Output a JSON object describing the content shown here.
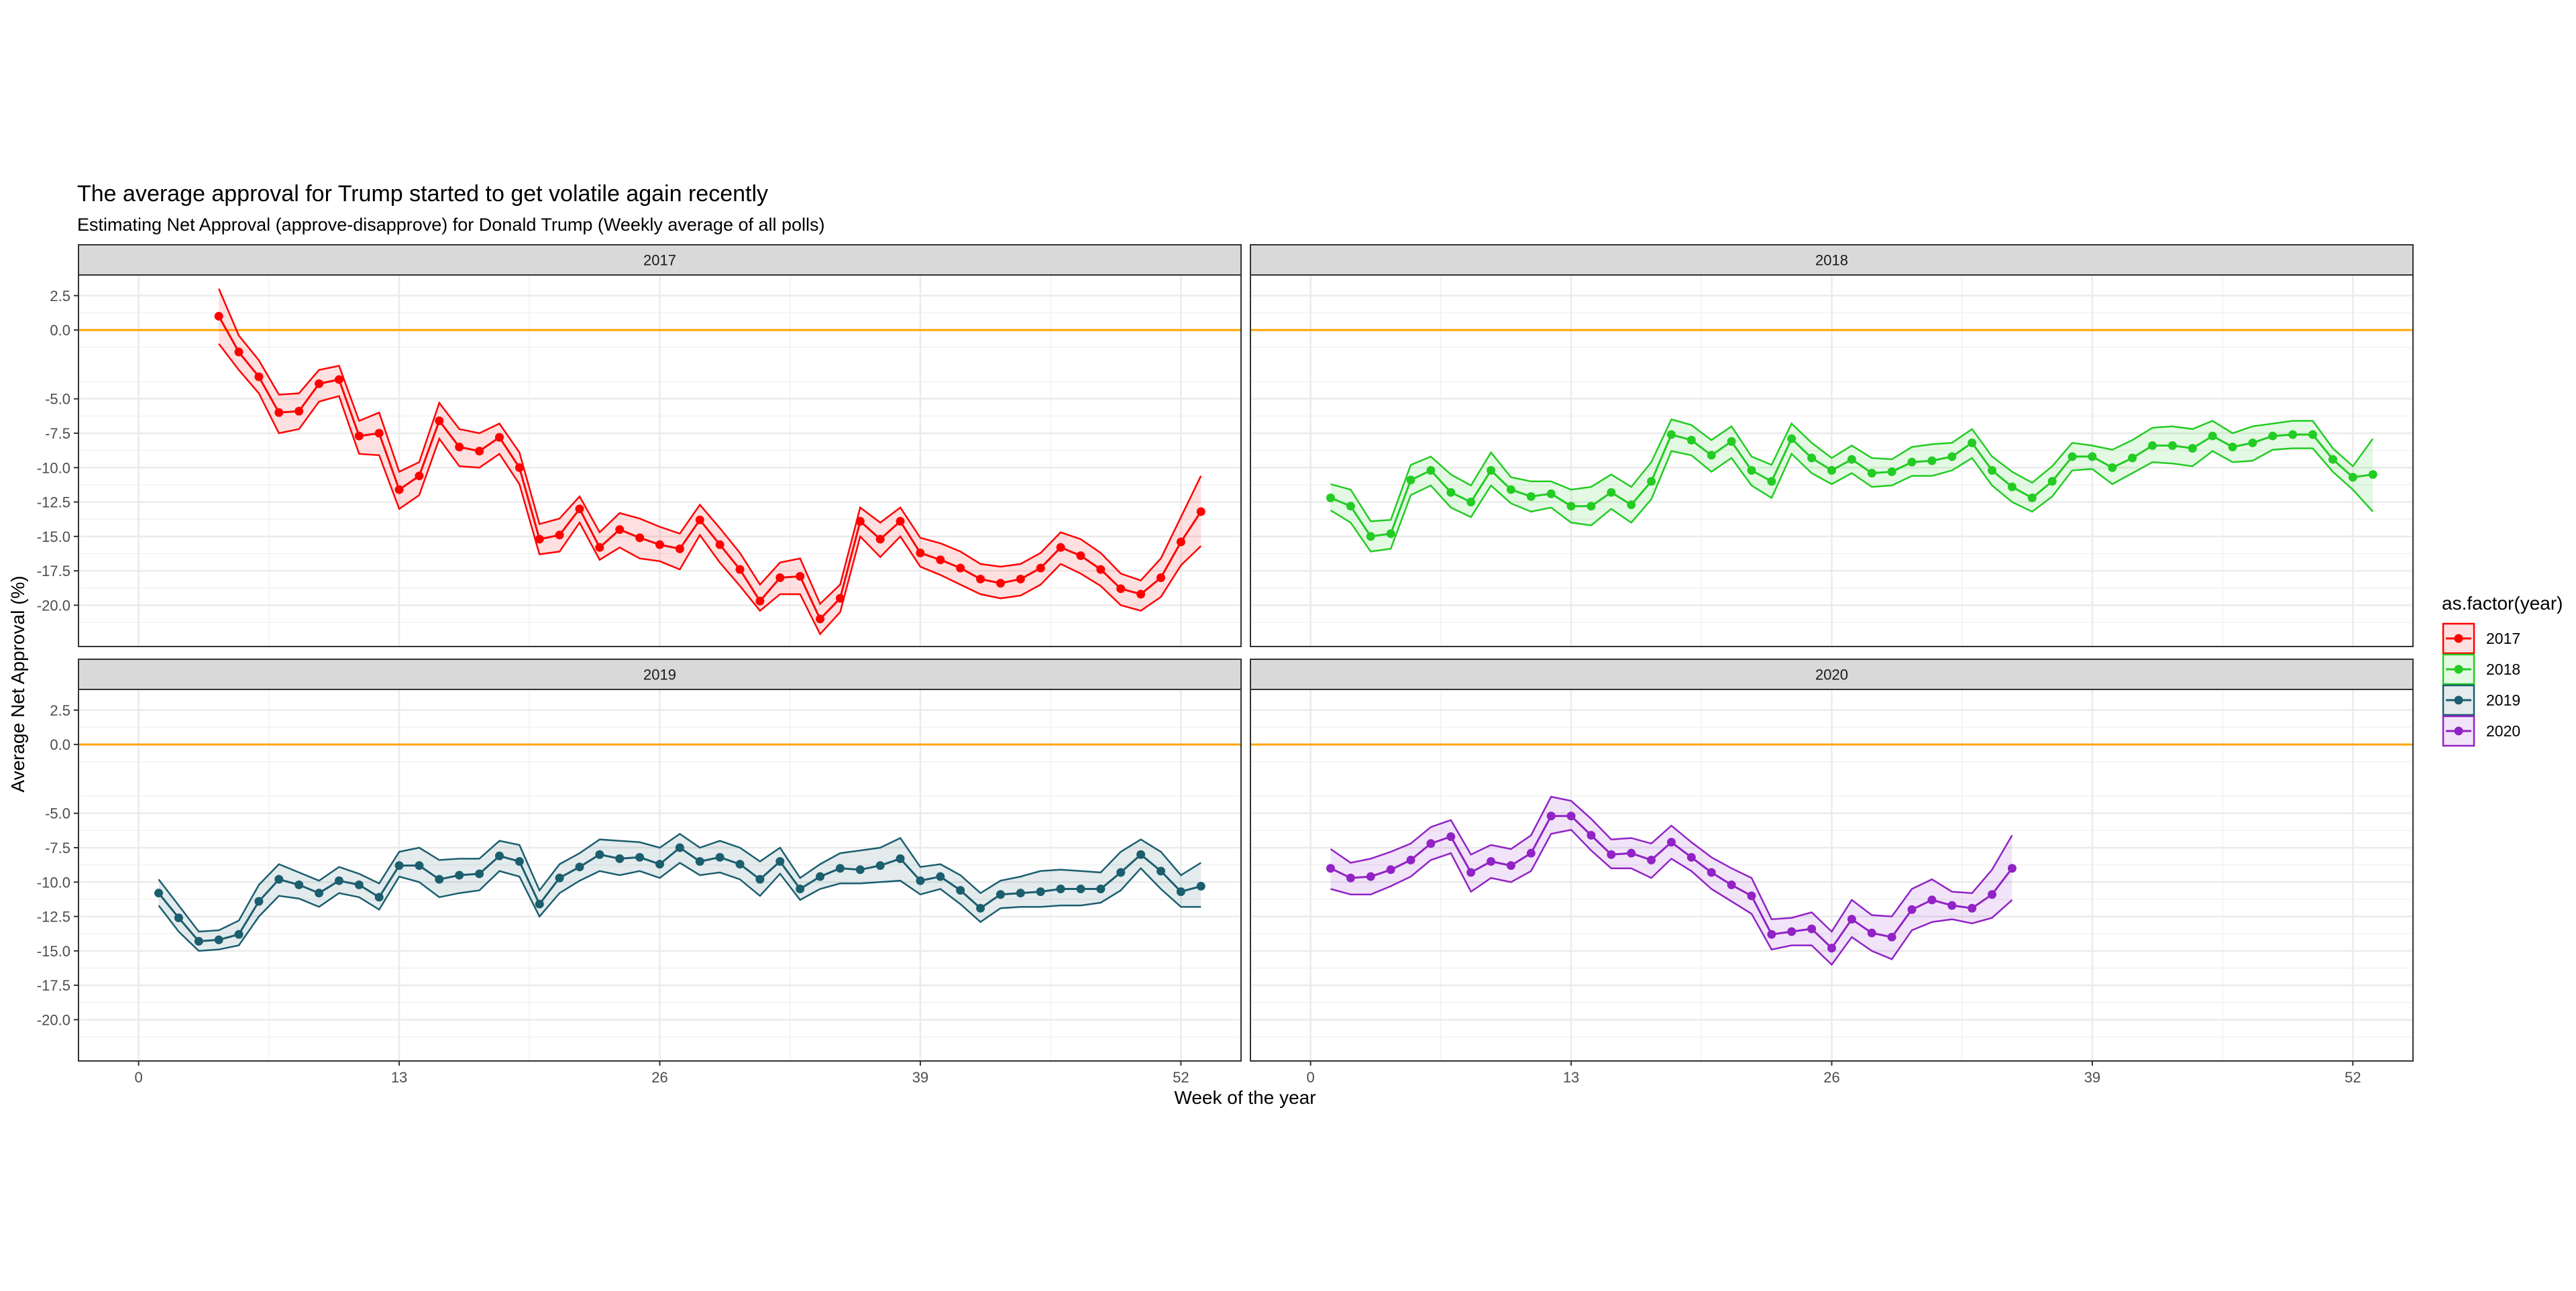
{
  "chart_data": {
    "type": "line",
    "title": "The average approval for Trump started to get volatile again recently",
    "subtitle": "Estimating Net Approval (approve-disapprove) for Donald Trump (Weekly average of all polls)",
    "xlabel": "Week of the year",
    "ylabel": "Average Net Approval (%)",
    "xlim": [
      -3,
      55
    ],
    "ylim": [
      -23,
      4
    ],
    "x_ticks": [
      0,
      13,
      26,
      39,
      52
    ],
    "y_ticks": [
      2.5,
      0.0,
      -5.0,
      -7.5,
      -10.0,
      -12.5,
      -15.0,
      -17.5,
      -20.0
    ],
    "y_tick_labels": [
      "2.5",
      "0.0",
      "-5.0",
      "-7.5",
      "-10.0",
      "-12.5",
      "-15.0",
      "-17.5",
      "-20.0"
    ],
    "reference_line": {
      "y": 0,
      "color": "#FFA500"
    },
    "grid": true,
    "legend": {
      "title": "as.factor(year)",
      "placement": "right"
    },
    "panels": [
      {
        "name": "2017",
        "color": "#FF0000",
        "x": [
          4,
          5,
          6,
          7,
          8,
          9,
          10,
          11,
          12,
          13,
          14,
          15,
          16,
          17,
          18,
          19,
          20,
          21,
          22,
          23,
          24,
          25,
          26,
          27,
          28,
          29,
          30,
          31,
          32,
          33,
          34,
          35,
          36,
          37,
          38,
          39,
          40,
          41,
          42,
          43,
          44,
          45,
          46,
          47,
          48,
          49,
          50,
          51,
          52,
          53
        ],
        "mean": [
          1.0,
          -1.6,
          -3.4,
          -6.0,
          -5.9,
          -3.9,
          -3.6,
          -7.7,
          -7.5,
          -11.6,
          -10.6,
          -6.6,
          -8.5,
          -8.8,
          -7.8,
          -10.0,
          -15.2,
          -14.9,
          -13.0,
          -15.8,
          -14.5,
          -15.1,
          -15.6,
          -15.9,
          -13.8,
          -15.6,
          -17.4,
          -19.7,
          -18.0,
          -17.9,
          -21.0,
          -19.5,
          -13.9,
          -15.2,
          -13.9,
          -16.2,
          -16.7,
          -17.3,
          -18.1,
          -18.4,
          -18.1,
          -17.3,
          -15.8,
          -16.4,
          -17.4,
          -18.8,
          -19.2,
          -18.0,
          -15.4,
          -13.2
        ],
        "upper": [
          3.0,
          -0.4,
          -2.2,
          -4.7,
          -4.6,
          -2.9,
          -2.6,
          -6.6,
          -6.0,
          -10.3,
          -9.6,
          -5.3,
          -7.2,
          -7.5,
          -6.8,
          -8.9,
          -14.1,
          -13.7,
          -12.1,
          -14.7,
          -13.3,
          -13.7,
          -14.3,
          -14.8,
          -12.7,
          -14.4,
          -16.2,
          -18.5,
          -16.9,
          -16.6,
          -19.9,
          -18.5,
          -12.9,
          -14.0,
          -12.9,
          -15.1,
          -15.5,
          -16.1,
          -17.0,
          -17.2,
          -17.0,
          -16.2,
          -14.7,
          -15.2,
          -16.2,
          -17.7,
          -18.2,
          -16.6,
          -13.6,
          -10.6
        ],
        "lower": [
          -1.0,
          -2.9,
          -4.6,
          -7.5,
          -7.2,
          -5.2,
          -4.8,
          -9.0,
          -9.1,
          -13.0,
          -12.0,
          -7.9,
          -9.9,
          -10.0,
          -9.0,
          -11.2,
          -16.3,
          -16.1,
          -14.0,
          -16.7,
          -15.8,
          -16.6,
          -16.8,
          -17.4,
          -14.9,
          -16.9,
          -18.6,
          -20.4,
          -19.2,
          -19.2,
          -22.1,
          -20.5,
          -15.0,
          -16.5,
          -15.0,
          -17.2,
          -17.8,
          -18.5,
          -19.2,
          -19.5,
          -19.3,
          -18.5,
          -17.0,
          -17.7,
          -18.6,
          -20.0,
          -20.4,
          -19.4,
          -17.1,
          -15.7
        ]
      },
      {
        "name": "2018",
        "color": "#22CC22",
        "x": [
          1,
          2,
          3,
          4,
          5,
          6,
          7,
          8,
          9,
          10,
          11,
          12,
          13,
          14,
          15,
          16,
          17,
          18,
          19,
          20,
          21,
          22,
          23,
          24,
          25,
          26,
          27,
          28,
          29,
          30,
          31,
          32,
          33,
          34,
          35,
          36,
          37,
          38,
          39,
          40,
          41,
          42,
          43,
          44,
          45,
          46,
          47,
          48,
          49,
          50,
          51,
          52,
          53
        ],
        "mean": [
          -12.2,
          -12.8,
          -15.0,
          -14.8,
          -10.9,
          -10.2,
          -11.8,
          -12.5,
          -10.2,
          -11.6,
          -12.1,
          -11.9,
          -12.8,
          -12.8,
          -11.8,
          -12.7,
          -11.0,
          -7.6,
          -8.0,
          -9.1,
          -8.1,
          -10.2,
          -11.0,
          -7.9,
          -9.3,
          -10.2,
          -9.4,
          -10.4,
          -10.3,
          -9.6,
          -9.5,
          -9.2,
          -8.2,
          -10.2,
          -11.4,
          -12.2,
          -11.0,
          -9.2,
          -9.2,
          -10.0,
          -9.3,
          -8.4,
          -8.4,
          -8.6,
          -7.7,
          -8.5,
          -8.2,
          -7.7,
          -7.6,
          -7.6,
          -9.4,
          -10.7,
          -10.5
        ],
        "upper": [
          -11.2,
          -11.6,
          -13.9,
          -13.8,
          -9.8,
          -9.2,
          -10.5,
          -11.3,
          -8.9,
          -10.7,
          -11.0,
          -11.0,
          -11.6,
          -11.4,
          -10.5,
          -11.4,
          -9.6,
          -6.5,
          -6.9,
          -8.0,
          -7.0,
          -9.2,
          -9.8,
          -6.8,
          -8.2,
          -9.3,
          -8.4,
          -9.3,
          -9.4,
          -8.5,
          -8.3,
          -8.2,
          -7.2,
          -9.2,
          -10.3,
          -11.1,
          -9.9,
          -8.2,
          -8.4,
          -8.7,
          -8.0,
          -7.1,
          -7.0,
          -7.2,
          -6.6,
          -7.5,
          -7.0,
          -6.8,
          -6.6,
          -6.6,
          -8.6,
          -9.9,
          -7.9
        ],
        "lower": [
          -13.1,
          -14.0,
          -16.1,
          -15.9,
          -12.0,
          -11.3,
          -12.9,
          -13.6,
          -11.3,
          -12.6,
          -13.2,
          -12.9,
          -14.0,
          -14.2,
          -13.0,
          -14.0,
          -12.3,
          -8.8,
          -9.1,
          -10.3,
          -9.3,
          -11.3,
          -12.2,
          -9.0,
          -10.4,
          -11.2,
          -10.4,
          -11.4,
          -11.3,
          -10.6,
          -10.6,
          -10.2,
          -9.3,
          -11.3,
          -12.5,
          -13.2,
          -12.1,
          -10.2,
          -10.1,
          -11.2,
          -10.4,
          -9.6,
          -9.7,
          -9.9,
          -8.8,
          -9.6,
          -9.5,
          -8.7,
          -8.6,
          -8.6,
          -10.3,
          -11.6,
          -13.2
        ]
      },
      {
        "name": "2019",
        "color": "#1B5E6E",
        "x": [
          1,
          2,
          3,
          4,
          5,
          6,
          7,
          8,
          9,
          10,
          11,
          12,
          13,
          14,
          15,
          16,
          17,
          18,
          19,
          20,
          21,
          22,
          23,
          24,
          25,
          26,
          27,
          28,
          29,
          30,
          31,
          32,
          33,
          34,
          35,
          36,
          37,
          38,
          39,
          40,
          41,
          42,
          43,
          44,
          45,
          46,
          47,
          48,
          49,
          50,
          51,
          52,
          53
        ],
        "mean": [
          -10.8,
          -12.6,
          -14.3,
          -14.2,
          -13.8,
          -11.4,
          -9.8,
          -10.2,
          -10.8,
          -9.9,
          -10.2,
          -11.1,
          -8.8,
          -8.8,
          -9.8,
          -9.5,
          -9.4,
          -8.1,
          -8.5,
          -11.6,
          -9.7,
          -8.9,
          -8.0,
          -8.3,
          -8.2,
          -8.7,
          -7.5,
          -8.5,
          -8.2,
          -8.7,
          -9.8,
          -8.5,
          -10.5,
          -9.6,
          -9.0,
          -9.1,
          -8.8,
          -8.3,
          -9.9,
          -9.6,
          -10.6,
          -11.9,
          -10.9,
          -10.8,
          -10.7,
          -10.5,
          -10.5,
          -10.5,
          -9.3,
          -8.0,
          -9.2,
          -10.7,
          -10.3
        ],
        "upper": [
          -9.8,
          -11.7,
          -13.6,
          -13.5,
          -12.8,
          -10.2,
          -8.7,
          -9.3,
          -9.9,
          -8.9,
          -9.4,
          -10.1,
          -7.8,
          -7.5,
          -8.4,
          -8.3,
          -8.3,
          -7.0,
          -7.3,
          -10.6,
          -8.7,
          -7.9,
          -6.9,
          -7.0,
          -7.1,
          -7.5,
          -6.5,
          -7.5,
          -7.0,
          -7.5,
          -8.5,
          -7.5,
          -9.7,
          -8.7,
          -7.9,
          -7.7,
          -7.5,
          -6.8,
          -8.9,
          -8.7,
          -9.5,
          -10.8,
          -9.9,
          -9.6,
          -9.2,
          -9.1,
          -9.2,
          -9.3,
          -7.8,
          -6.9,
          -7.8,
          -9.5,
          -8.6
        ],
        "lower": [
          -11.7,
          -13.6,
          -15.0,
          -14.9,
          -14.6,
          -12.5,
          -11.0,
          -11.2,
          -11.8,
          -10.8,
          -11.1,
          -12.0,
          -9.6,
          -10.0,
          -11.1,
          -10.8,
          -10.6,
          -9.2,
          -9.6,
          -12.5,
          -10.8,
          -9.9,
          -9.2,
          -9.5,
          -9.2,
          -9.7,
          -8.6,
          -9.5,
          -9.3,
          -9.8,
          -11.0,
          -9.4,
          -11.3,
          -10.5,
          -10.1,
          -10.1,
          -10.0,
          -9.9,
          -10.9,
          -10.5,
          -11.6,
          -12.9,
          -11.9,
          -11.8,
          -11.8,
          -11.7,
          -11.7,
          -11.5,
          -10.6,
          -9.0,
          -10.5,
          -11.8,
          -11.8
        ]
      },
      {
        "name": "2020",
        "color": "#9122C6",
        "x": [
          1,
          2,
          3,
          4,
          5,
          6,
          7,
          8,
          9,
          10,
          11,
          12,
          13,
          14,
          15,
          16,
          17,
          18,
          19,
          20,
          21,
          22,
          23,
          24,
          25,
          26,
          27,
          28,
          29,
          30,
          31,
          32,
          33,
          34,
          35
        ],
        "mean": [
          -9.0,
          -9.7,
          -9.6,
          -9.1,
          -8.4,
          -7.2,
          -6.7,
          -9.3,
          -8.5,
          -8.8,
          -7.9,
          -5.2,
          -5.2,
          -6.6,
          -8.0,
          -7.9,
          -8.4,
          -7.1,
          -8.2,
          -9.3,
          -10.2,
          -11.0,
          -13.8,
          -13.6,
          -13.4,
          -14.8,
          -12.7,
          -13.7,
          -14.0,
          -12.0,
          -11.3,
          -11.7,
          -11.9,
          -10.9,
          -9.0
        ],
        "upper": [
          -7.6,
          -8.6,
          -8.3,
          -7.8,
          -7.2,
          -6.0,
          -5.5,
          -8.0,
          -7.3,
          -7.6,
          -6.6,
          -3.8,
          -4.1,
          -5.4,
          -6.9,
          -6.8,
          -7.2,
          -5.9,
          -7.1,
          -8.2,
          -9.0,
          -9.7,
          -12.7,
          -12.6,
          -12.2,
          -13.6,
          -11.3,
          -12.4,
          -12.5,
          -10.5,
          -9.8,
          -10.7,
          -10.8,
          -9.1,
          -6.6
        ],
        "lower": [
          -10.5,
          -10.9,
          -10.9,
          -10.3,
          -9.6,
          -8.4,
          -7.9,
          -10.7,
          -9.7,
          -10.0,
          -9.2,
          -6.5,
          -6.2,
          -7.7,
          -9.0,
          -9.0,
          -9.7,
          -8.3,
          -9.2,
          -10.5,
          -11.4,
          -12.3,
          -14.9,
          -14.6,
          -14.6,
          -16.0,
          -14.0,
          -15.0,
          -15.6,
          -13.5,
          -12.9,
          -12.7,
          -13.0,
          -12.6,
          -11.3
        ]
      }
    ]
  }
}
